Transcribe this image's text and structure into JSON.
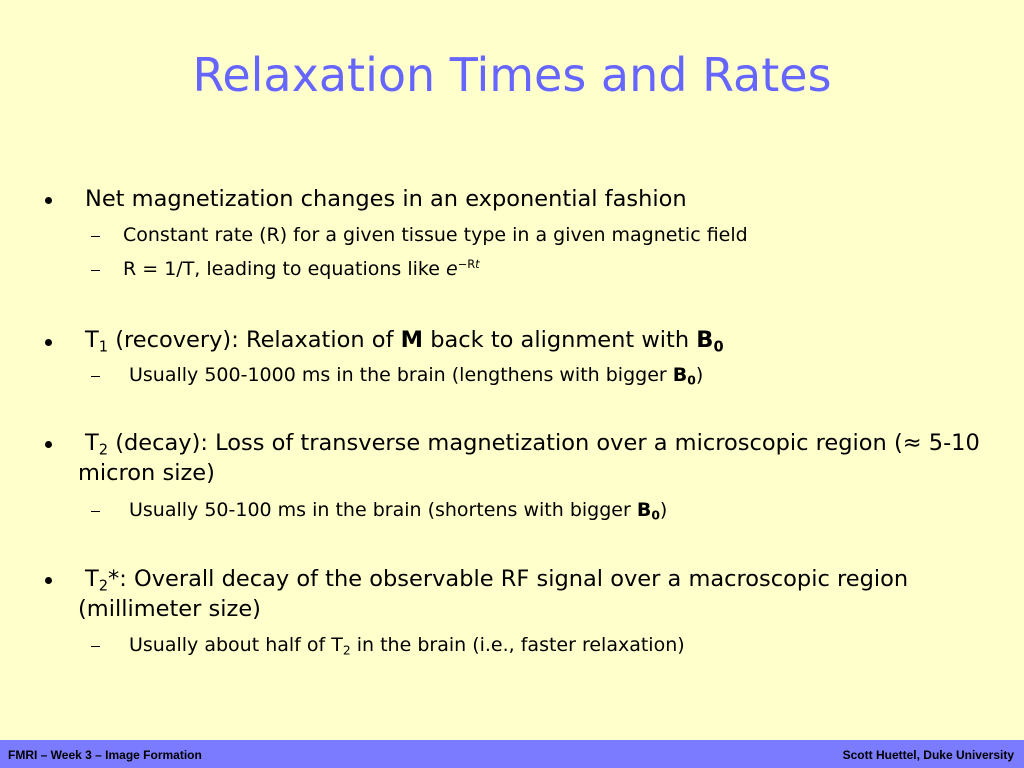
{
  "title": "Relaxation Times and Rates",
  "bullets": [
    {
      "text": [
        "Net magnetization changes in an exponential fashion"
      ],
      "sub": [
        [
          "Constant rate (R) for a given tissue type in a given magnetic field"
        ],
        [
          "R = 1/T, leading to equations like ",
          "e",
          "−R",
          "t"
        ]
      ]
    },
    {
      "text": [
        "T",
        "1",
        " (recovery): Relaxation of ",
        "M",
        " back to alignment with ",
        "B",
        "0"
      ],
      "sub": [
        [
          "Usually 500-1000 ms in the brain (lengthens with bigger ",
          "B",
          "0",
          ")"
        ]
      ]
    },
    {
      "text": [
        "T",
        "2",
        " (decay): Loss of transverse magnetization over a microscopic region (≈ 5-10 micron size)"
      ],
      "sub": [
        [
          "Usually 50-100 ms in the brain (shortens with bigger ",
          "B",
          "0",
          ")"
        ]
      ]
    },
    {
      "text": [
        "T",
        "2",
        "*: Overall decay of the observable RF signal over a macroscopic region (millimeter size)"
      ],
      "sub": [
        [
          "Usually about half of T",
          "2",
          " in the brain (i.e., faster relaxation)"
        ]
      ]
    }
  ],
  "footer": {
    "left": "FMRI – Week 3 – Image Formation",
    "right": "Scott Huettel, Duke University"
  }
}
